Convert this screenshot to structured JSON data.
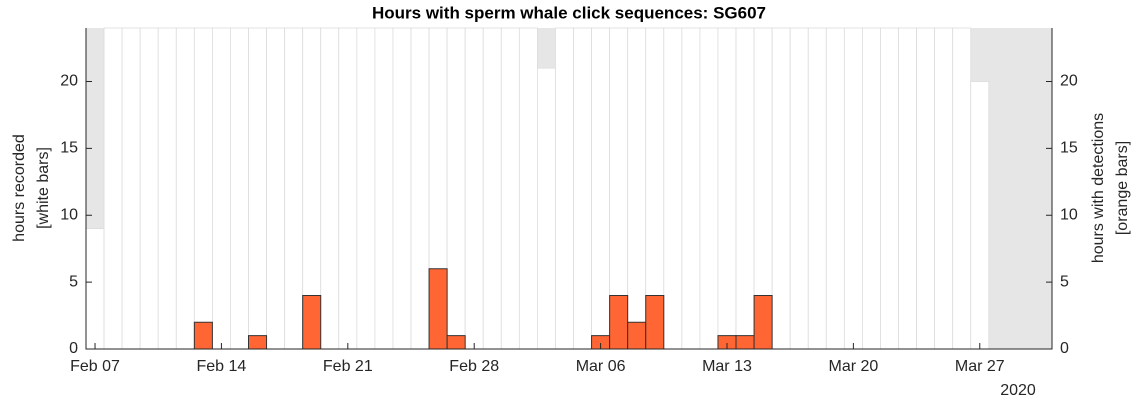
{
  "chart_data": {
    "type": "bar",
    "title": "Hours with sperm whale click sequences: SG607",
    "ylabel": [
      "hours recorded",
      "[white bars]"
    ],
    "y2label": [
      "hours with detections",
      "[orange bars]"
    ],
    "x_year_label": "2020",
    "background_color": "#e6e6e6",
    "x": [
      "2020-02-07",
      "2020-02-08",
      "2020-02-09",
      "2020-02-10",
      "2020-02-11",
      "2020-02-12",
      "2020-02-13",
      "2020-02-14",
      "2020-02-15",
      "2020-02-16",
      "2020-02-17",
      "2020-02-18",
      "2020-02-19",
      "2020-02-20",
      "2020-02-21",
      "2020-02-22",
      "2020-02-23",
      "2020-02-24",
      "2020-02-25",
      "2020-02-26",
      "2020-02-27",
      "2020-02-28",
      "2020-02-29",
      "2020-03-01",
      "2020-03-02",
      "2020-03-03",
      "2020-03-04",
      "2020-03-05",
      "2020-03-06",
      "2020-03-07",
      "2020-03-08",
      "2020-03-09",
      "2020-03-10",
      "2020-03-11",
      "2020-03-12",
      "2020-03-13",
      "2020-03-14",
      "2020-03-15",
      "2020-03-16",
      "2020-03-17",
      "2020-03-18",
      "2020-03-19",
      "2020-03-20",
      "2020-03-21",
      "2020-03-22",
      "2020-03-23",
      "2020-03-24",
      "2020-03-25",
      "2020-03-26",
      "2020-03-27"
    ],
    "series": [
      {
        "color": "#ffffff",
        "edge": "#dcdcdc",
        "axis": "y",
        "values": [
          9,
          24,
          24,
          24,
          24,
          24,
          24,
          24,
          24,
          24,
          24,
          24,
          24,
          24,
          24,
          24,
          24,
          24,
          24,
          24,
          24,
          24,
          24,
          24,
          24,
          21,
          24,
          24,
          24,
          24,
          24,
          24,
          24,
          24,
          24,
          24,
          24,
          24,
          24,
          24,
          24,
          24,
          24,
          24,
          24,
          24,
          24,
          24,
          24,
          20
        ]
      },
      {
        "color": "#ff6633",
        "edge": "#333333",
        "axis": "y2",
        "values": [
          0,
          0,
          0,
          0,
          0,
          0,
          2,
          0,
          0,
          1,
          0,
          0,
          4,
          0,
          0,
          0,
          0,
          0,
          0,
          6,
          1,
          0,
          0,
          0,
          0,
          0,
          0,
          0,
          1,
          4,
          2,
          4,
          0,
          0,
          0,
          1,
          1,
          4,
          0,
          0,
          0,
          0,
          0,
          0,
          0,
          0,
          0,
          0,
          0,
          0
        ]
      }
    ],
    "xlim": [
      "2020-02-06T12:00",
      "2020-03-31T00:00"
    ],
    "xticks": [
      {
        "value": "2020-02-07",
        "label": "Feb 07"
      },
      {
        "value": "2020-02-14",
        "label": "Feb 14"
      },
      {
        "value": "2020-02-21",
        "label": "Feb 21"
      },
      {
        "value": "2020-02-28",
        "label": "Feb 28"
      },
      {
        "value": "2020-03-06",
        "label": "Mar 06"
      },
      {
        "value": "2020-03-13",
        "label": "Mar 13"
      },
      {
        "value": "2020-03-20",
        "label": "Mar 20"
      },
      {
        "value": "2020-03-27",
        "label": "Mar 27"
      }
    ],
    "ylim": [
      0,
      24
    ],
    "yticks": [
      0,
      5,
      10,
      15,
      20
    ],
    "y2lim": [
      0,
      24
    ],
    "y2ticks": [
      0,
      5,
      10,
      15,
      20
    ]
  }
}
